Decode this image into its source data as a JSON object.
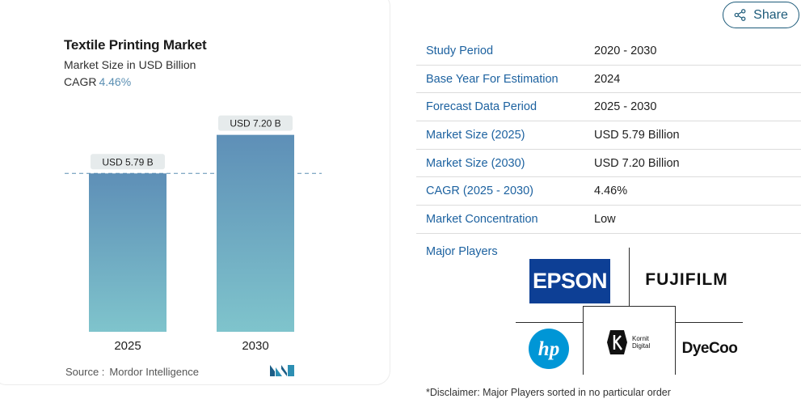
{
  "chart": {
    "title": "Textile Printing Market",
    "subtitle": "Market Size in USD Billion",
    "cagr_label": "CAGR",
    "cagr_value": "4.46%",
    "source_label": "Source :",
    "source_value": "Mordor Intelligence"
  },
  "chart_data": {
    "type": "bar",
    "categories": [
      "2025",
      "2030"
    ],
    "values": [
      5.79,
      7.2
    ],
    "data_labels": [
      "USD 5.79 B",
      "USD 7.20 B"
    ],
    "title": "Textile Printing Market",
    "subtitle": "Market Size in USD Billion",
    "reference_line": 5.79,
    "grid": false,
    "colors": {
      "bar_top": "#5e8fb7",
      "bar_bottom": "#7fc4cc",
      "label_bg": "#e6ebec",
      "reference_line": "#5b8fb3"
    }
  },
  "share": {
    "label": "Share",
    "icon": "share-icon"
  },
  "info": {
    "rows": [
      {
        "key": "Study Period",
        "value": "2020 - 2030"
      },
      {
        "key": "Base Year For Estimation",
        "value": "2024"
      },
      {
        "key": "Forecast Data Period",
        "value": "2025 - 2030"
      },
      {
        "key": "Market Size (2025)",
        "value": "USD 5.79 Billion"
      },
      {
        "key": "Market Size (2030)",
        "value": "USD 7.20 Billion"
      },
      {
        "key": "CAGR (2025 - 2030)",
        "value": "4.46%"
      },
      {
        "key": "Market Concentration",
        "value": "Low"
      }
    ],
    "players_label": "Major Players"
  },
  "players": {
    "epson": "EPSON",
    "fujifilm": "FUJIFILM",
    "hp": "hp",
    "kornit_line1": "Kornit",
    "kornit_line2": "Digital",
    "dyecoo": "DyeCoo"
  },
  "disclaimer": "*Disclaimer: Major Players sorted in no particular order",
  "colors": {
    "accent_blue": "#1d62a0",
    "share_border": "#1d5b7a",
    "epson_blue": "#0d3f95",
    "hp_blue": "#0096d6"
  }
}
